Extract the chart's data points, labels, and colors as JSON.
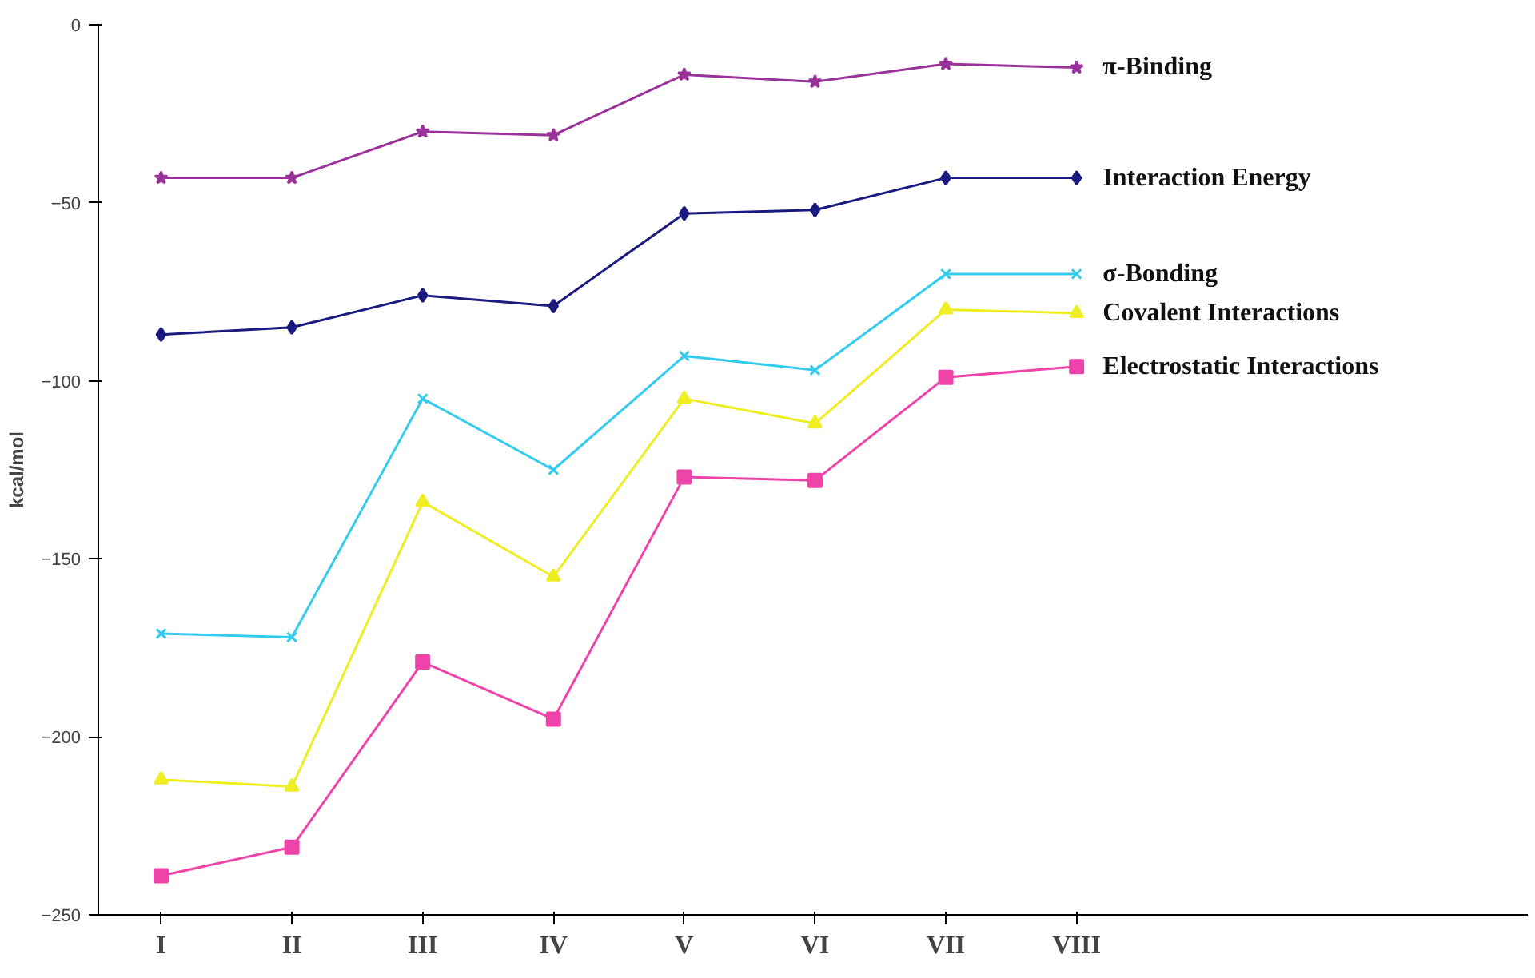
{
  "chart_data": {
    "type": "line",
    "ylabel": "kcal/mol",
    "categories": [
      "I",
      "II",
      "III",
      "IV",
      "V",
      "VI",
      "VII",
      "VIII"
    ],
    "ylim": [
      -250,
      0
    ],
    "yticks": [
      0,
      -50,
      -100,
      -150,
      -200,
      -250
    ],
    "grid": false,
    "series": [
      {
        "name": "π-Binding",
        "color": "#993399",
        "marker": "star",
        "values": [
          -43,
          -43,
          -30,
          -31,
          -14,
          -16,
          -11,
          -12
        ]
      },
      {
        "name": "Interaction Energy",
        "color": "#1a1a80",
        "marker": "diamond",
        "values": [
          -87,
          -85,
          -76,
          -79,
          -53,
          -52,
          -43,
          -43
        ]
      },
      {
        "name": "σ-Bonding",
        "color": "#33ccee",
        "marker": "cross",
        "values": [
          -171,
          -172,
          -105,
          -125,
          -93,
          -97,
          -70,
          -70
        ]
      },
      {
        "name": "Covalent Interactions",
        "color": "#eeee22",
        "marker": "triangle",
        "values": [
          -212,
          -214,
          -134,
          -155,
          -105,
          -112,
          -80,
          -81
        ]
      },
      {
        "name": "Electrostatic Interactions",
        "color": "#ee44aa",
        "marker": "square",
        "values": [
          -239,
          -231,
          -179,
          -195,
          -127,
          -128,
          -99,
          -96
        ]
      }
    ]
  }
}
